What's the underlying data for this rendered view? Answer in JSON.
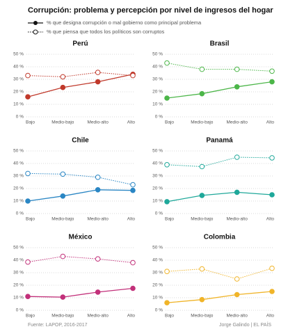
{
  "title": "Corrupción: problema y percepción por nivel de ingresos del hogar",
  "legend": [
    "% que designa corrupción o mal gobierno como principal problema",
    "% que piensa que todos los políticos son corruptos"
  ],
  "source": "Fuente: LAPOP, 2016-2017",
  "credit": "Jorge Galindo | EL PAÍS",
  "chart_data": [
    {
      "type": "line",
      "title": "Perú",
      "categories": [
        "Bajo",
        "Medio-bajo",
        "Medio-alto",
        "Alto"
      ],
      "ylim": [
        0,
        50
      ],
      "yticks": [
        {
          "value": 0,
          "label": "0 %"
        },
        {
          "value": 10,
          "label": "10 %"
        },
        {
          "value": 20,
          "label": "20 %"
        },
        {
          "value": 30,
          "label": "30 %"
        },
        {
          "value": 40,
          "label": "40 %"
        },
        {
          "value": 50,
          "label": "50 %"
        }
      ],
      "grid": true,
      "series": [
        {
          "color": "#c0392b",
          "dashed": false,
          "values": [
            16,
            23.5,
            28,
            34
          ]
        },
        {
          "color": "#c0392b",
          "dashed": true,
          "values": [
            33,
            32,
            35.5,
            33
          ]
        }
      ]
    },
    {
      "type": "line",
      "title": "Brasil",
      "categories": [
        "Bajo",
        "Medio-bajo",
        "Medio-alto",
        "Alto"
      ],
      "ylim": [
        0,
        50
      ],
      "yticks": [
        {
          "value": 0,
          "label": "0 %"
        },
        {
          "value": 10,
          "label": "10 %"
        },
        {
          "value": 20,
          "label": "20 %"
        },
        {
          "value": 30,
          "label": "30 %"
        },
        {
          "value": 40,
          "label": "40 %"
        },
        {
          "value": 50,
          "label": "50 %"
        }
      ],
      "grid": true,
      "series": [
        {
          "color": "#4cb649",
          "dashed": false,
          "values": [
            15,
            18.5,
            24,
            28
          ]
        },
        {
          "color": "#4cb649",
          "dashed": true,
          "values": [
            43,
            38,
            38,
            36.5
          ]
        }
      ]
    },
    {
      "type": "line",
      "title": "Chile",
      "categories": [
        "Bajo",
        "Medio-bajo",
        "Medio-alto",
        "Alto"
      ],
      "ylim": [
        0,
        50
      ],
      "yticks": [
        {
          "value": 0,
          "label": "0 %"
        },
        {
          "value": 10,
          "label": "10 %"
        },
        {
          "value": 20,
          "label": "20 %"
        },
        {
          "value": 30,
          "label": "30 %"
        },
        {
          "value": 40,
          "label": "40 %"
        },
        {
          "value": 50,
          "label": "50 %"
        }
      ],
      "grid": true,
      "series": [
        {
          "color": "#2a86c4",
          "dashed": false,
          "values": [
            10,
            14,
            19,
            18.5
          ]
        },
        {
          "color": "#2a86c4",
          "dashed": true,
          "values": [
            32,
            31.5,
            29,
            23
          ]
        }
      ]
    },
    {
      "type": "line",
      "title": "Panamá",
      "categories": [
        "Bajo",
        "Medio-bajo",
        "Medio-alto",
        "Alto"
      ],
      "ylim": [
        0,
        50
      ],
      "yticks": [
        {
          "value": 0,
          "label": "0 %"
        },
        {
          "value": 10,
          "label": "10 %"
        },
        {
          "value": 20,
          "label": "20 %"
        },
        {
          "value": 30,
          "label": "30 %"
        },
        {
          "value": 40,
          "label": "40 %"
        },
        {
          "value": 50,
          "label": "50 %"
        }
      ],
      "grid": true,
      "series": [
        {
          "color": "#1fa89a",
          "dashed": false,
          "values": [
            9.5,
            14.5,
            17,
            15
          ]
        },
        {
          "color": "#1fa89a",
          "dashed": true,
          "values": [
            39,
            37.5,
            45,
            44.5
          ]
        }
      ]
    },
    {
      "type": "line",
      "title": "México",
      "categories": [
        "Bajo",
        "Medio-bajo",
        "Medio-alto",
        "Alto"
      ],
      "ylim": [
        0,
        50
      ],
      "yticks": [
        {
          "value": 0,
          "label": "0 %"
        },
        {
          "value": 10,
          "label": "10 %"
        },
        {
          "value": 20,
          "label": "20 %"
        },
        {
          "value": 30,
          "label": "30 %"
        },
        {
          "value": 40,
          "label": "40 %"
        },
        {
          "value": 50,
          "label": "50 %"
        }
      ],
      "grid": true,
      "series": [
        {
          "color": "#c2307a",
          "dashed": false,
          "values": [
            11,
            10.5,
            14.5,
            17.5
          ]
        },
        {
          "color": "#c2307a",
          "dashed": true,
          "values": [
            38.5,
            43,
            41,
            38
          ]
        }
      ]
    },
    {
      "type": "line",
      "title": "Colombia",
      "categories": [
        "Bajo",
        "Medio-bajo",
        "Medio-alto",
        "Alto"
      ],
      "ylim": [
        0,
        50
      ],
      "yticks": [
        {
          "value": 0,
          "label": "0 %"
        },
        {
          "value": 10,
          "label": "10 %"
        },
        {
          "value": 20,
          "label": "20 %"
        },
        {
          "value": 30,
          "label": "30 %"
        },
        {
          "value": 40,
          "label": "40 %"
        },
        {
          "value": 50,
          "label": "50 %"
        }
      ],
      "grid": true,
      "series": [
        {
          "color": "#f0b429",
          "dashed": false,
          "values": [
            6,
            8.5,
            12.5,
            15
          ]
        },
        {
          "color": "#f0b429",
          "dashed": true,
          "values": [
            31,
            33,
            25,
            33.5
          ]
        }
      ]
    }
  ]
}
